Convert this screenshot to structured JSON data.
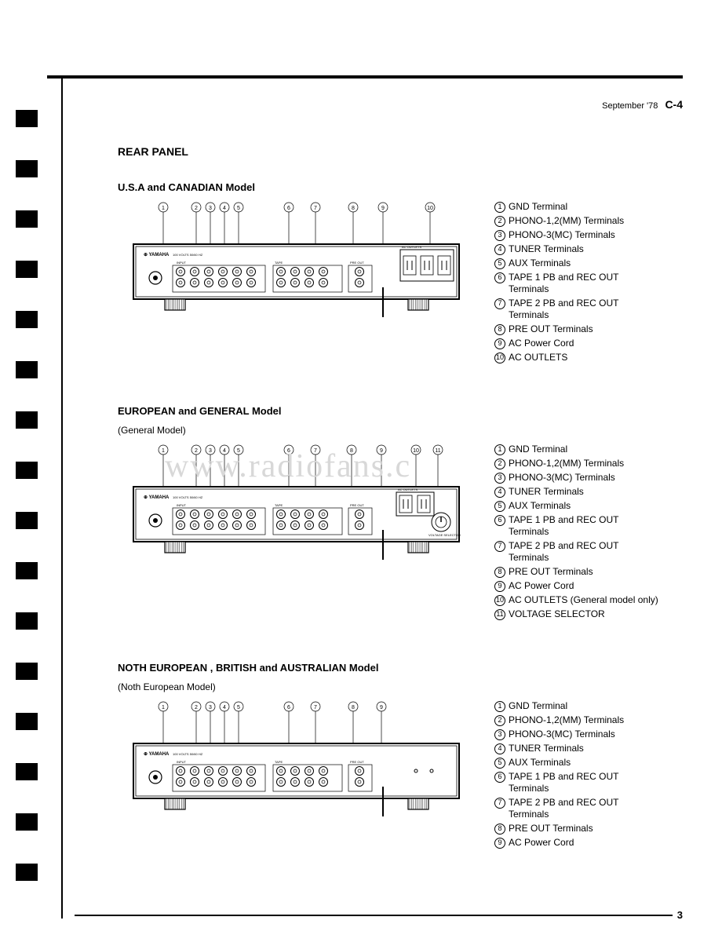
{
  "header": {
    "date": "September '78",
    "model": "C-4"
  },
  "section_title": "REAR PANEL",
  "watermark": "www.radiofans.c",
  "page_number": "3",
  "models": [
    {
      "title": "U.S.A and CANADIAN Model",
      "subtitle": "",
      "callouts": [
        "1",
        "2",
        "3",
        "4",
        "5",
        "6",
        "7",
        "8",
        "9",
        "10"
      ],
      "legend": [
        {
          "n": "1",
          "t": "GND Terminal"
        },
        {
          "n": "2",
          "t": "PHONO-1,2(MM) Terminals"
        },
        {
          "n": "3",
          "t": "PHONO-3(MC) Terminals"
        },
        {
          "n": "4",
          "t": "TUNER Terminals"
        },
        {
          "n": "5",
          "t": "AUX Terminals"
        },
        {
          "n": "6",
          "t": "TAPE 1 PB and REC OUT Terminals"
        },
        {
          "n": "7",
          "t": "TAPE 2 PB and REC OUT Terminals"
        },
        {
          "n": "8",
          "t": "PRE OUT Terminals"
        },
        {
          "n": "9",
          "t": "AC Power Cord"
        },
        {
          "n": "10",
          "t": "AC OUTLETS"
        }
      ]
    },
    {
      "title": "EUROPEAN and GENERAL Model",
      "subtitle": "(General Model)",
      "callouts": [
        "1",
        "2",
        "3",
        "4",
        "5",
        "6",
        "7",
        "8",
        "9",
        "10",
        "11"
      ],
      "legend": [
        {
          "n": "1",
          "t": "GND Terminal"
        },
        {
          "n": "2",
          "t": "PHONO-1,2(MM) Terminals"
        },
        {
          "n": "3",
          "t": "PHONO-3(MC) Terminals"
        },
        {
          "n": "4",
          "t": "TUNER Terminals"
        },
        {
          "n": "5",
          "t": "AUX Terminals"
        },
        {
          "n": "6",
          "t": "TAPE 1 PB and REC OUT Terminals"
        },
        {
          "n": "7",
          "t": "TAPE 2 PB and REC OUT Terminals"
        },
        {
          "n": "8",
          "t": "PRE OUT Terminals"
        },
        {
          "n": "9",
          "t": "AC Power Cord"
        },
        {
          "n": "10",
          "t": "AC OUTLETS (General model only)"
        },
        {
          "n": "11",
          "t": "VOLTAGE SELECTOR"
        }
      ]
    },
    {
      "title": "NOTH EUROPEAN , BRITISH and AUSTRALIAN Model",
      "subtitle": "(Noth European Model)",
      "callouts": [
        "1",
        "2",
        "3",
        "4",
        "5",
        "6",
        "7",
        "8",
        "9"
      ],
      "legend": [
        {
          "n": "1",
          "t": "GND Terminal"
        },
        {
          "n": "2",
          "t": "PHONO-1,2(MM) Terminals"
        },
        {
          "n": "3",
          "t": "PHONO-3(MC) Terminals"
        },
        {
          "n": "4",
          "t": "TUNER Terminals"
        },
        {
          "n": "5",
          "t": "AUX Terminals"
        },
        {
          "n": "6",
          "t": "TAPE 1 PB and REC OUT Terminals"
        },
        {
          "n": "7",
          "t": "TAPE 2 PB and REC OUT Terminals"
        },
        {
          "n": "8",
          "t": "PRE OUT Terminals"
        },
        {
          "n": "9",
          "t": "AC Power Cord"
        }
      ]
    }
  ]
}
